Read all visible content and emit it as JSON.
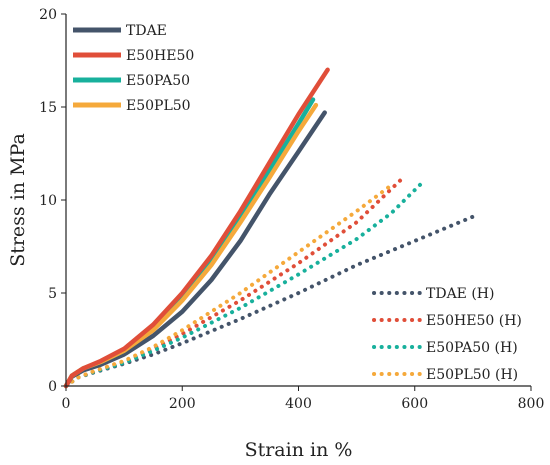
{
  "chart_data": {
    "type": "line",
    "xlabel": "Strain in %",
    "ylabel": "Stress in MPa",
    "xlim": [
      0,
      800
    ],
    "ylim": [
      0,
      20
    ],
    "xticks": [
      0,
      200,
      400,
      600,
      800
    ],
    "yticks": [
      0,
      5,
      10,
      15,
      20
    ],
    "grid": false,
    "legends": [
      {
        "placement": "top-left",
        "entries": [
          "TDAE",
          "E50HE50",
          "E50PA50",
          "E50PL50"
        ]
      },
      {
        "placement": "bottom-right",
        "entries": [
          "TDAE (H)",
          "E50HE50 (H)",
          "E50PA50 (H)",
          "E50PL50 (H)"
        ]
      }
    ],
    "series": [
      {
        "name": "TDAE",
        "style": "solid",
        "color": "#44546a",
        "points": [
          [
            0,
            0
          ],
          [
            10,
            0.5
          ],
          [
            30,
            0.85
          ],
          [
            60,
            1.15
          ],
          [
            100,
            1.7
          ],
          [
            150,
            2.7
          ],
          [
            200,
            4.0
          ],
          [
            250,
            5.7
          ],
          [
            300,
            7.8
          ],
          [
            350,
            10.3
          ],
          [
            400,
            12.6
          ],
          [
            445,
            14.7
          ]
        ]
      },
      {
        "name": "E50HE50",
        "style": "solid",
        "color": "#e04e39",
        "points": [
          [
            0,
            0
          ],
          [
            10,
            0.55
          ],
          [
            30,
            0.95
          ],
          [
            60,
            1.35
          ],
          [
            100,
            2.0
          ],
          [
            150,
            3.3
          ],
          [
            200,
            5.0
          ],
          [
            250,
            7.0
          ],
          [
            300,
            9.4
          ],
          [
            350,
            12.0
          ],
          [
            400,
            14.6
          ],
          [
            450,
            17.0
          ]
        ]
      },
      {
        "name": "E50PA50",
        "style": "solid",
        "color": "#18b09c",
        "points": [
          [
            0,
            0
          ],
          [
            10,
            0.55
          ],
          [
            30,
            0.95
          ],
          [
            60,
            1.3
          ],
          [
            100,
            1.9
          ],
          [
            150,
            3.1
          ],
          [
            200,
            4.7
          ],
          [
            250,
            6.7
          ],
          [
            300,
            9.1
          ],
          [
            350,
            11.6
          ],
          [
            400,
            14.1
          ],
          [
            425,
            15.4
          ]
        ]
      },
      {
        "name": "E50PL50",
        "style": "solid",
        "color": "#f5a93b",
        "points": [
          [
            0,
            0
          ],
          [
            10,
            0.55
          ],
          [
            30,
            0.95
          ],
          [
            60,
            1.3
          ],
          [
            100,
            1.9
          ],
          [
            150,
            3.0
          ],
          [
            200,
            4.6
          ],
          [
            250,
            6.5
          ],
          [
            300,
            8.8
          ],
          [
            350,
            11.2
          ],
          [
            400,
            13.7
          ],
          [
            430,
            15.1
          ]
        ]
      },
      {
        "name": "TDAE (H)",
        "style": "dotted",
        "color": "#44546a",
        "points": [
          [
            0,
            0
          ],
          [
            20,
            0.45
          ],
          [
            50,
            0.75
          ],
          [
            100,
            1.2
          ],
          [
            150,
            1.7
          ],
          [
            200,
            2.3
          ],
          [
            300,
            3.6
          ],
          [
            400,
            5.0
          ],
          [
            500,
            6.5
          ],
          [
            600,
            7.8
          ],
          [
            700,
            9.1
          ]
        ]
      },
      {
        "name": "E50HE50 (H)",
        "style": "dotted",
        "color": "#e04e39",
        "points": [
          [
            0,
            0
          ],
          [
            20,
            0.45
          ],
          [
            50,
            0.8
          ],
          [
            100,
            1.3
          ],
          [
            150,
            2.0
          ],
          [
            200,
            2.8
          ],
          [
            300,
            4.6
          ],
          [
            400,
            6.6
          ],
          [
            500,
            8.8
          ],
          [
            580,
            11.2
          ]
        ]
      },
      {
        "name": "E50PA50 (H)",
        "style": "dotted",
        "color": "#18b09c",
        "points": [
          [
            0,
            0
          ],
          [
            20,
            0.45
          ],
          [
            50,
            0.78
          ],
          [
            100,
            1.25
          ],
          [
            150,
            1.9
          ],
          [
            200,
            2.6
          ],
          [
            300,
            4.2
          ],
          [
            400,
            6.0
          ],
          [
            500,
            7.9
          ],
          [
            560,
            9.3
          ],
          [
            615,
            11.0
          ]
        ]
      },
      {
        "name": "E50PL50 (H)",
        "style": "dotted",
        "color": "#f5a93b",
        "points": [
          [
            0,
            0
          ],
          [
            20,
            0.45
          ],
          [
            50,
            0.82
          ],
          [
            100,
            1.35
          ],
          [
            150,
            2.1
          ],
          [
            200,
            3.0
          ],
          [
            300,
            5.0
          ],
          [
            400,
            7.2
          ],
          [
            500,
            9.4
          ],
          [
            560,
            10.8
          ]
        ]
      }
    ]
  }
}
